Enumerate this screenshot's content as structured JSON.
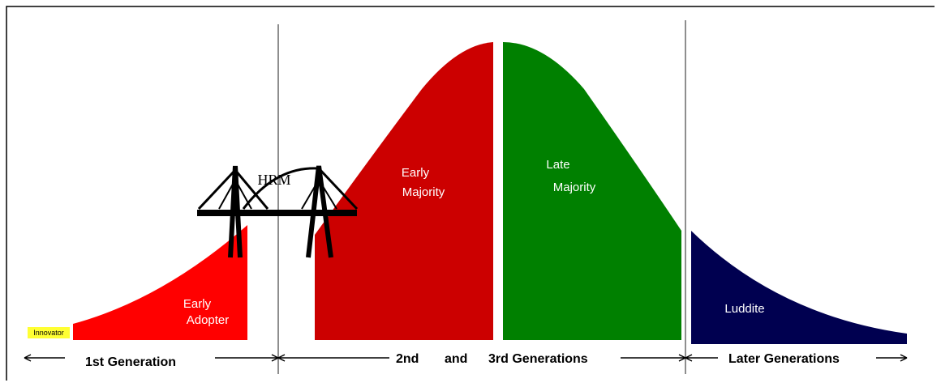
{
  "diagram": {
    "innovator": "Innovator",
    "early_adopter": [
      "Early",
      "Adopter"
    ],
    "bridge_label": "HRM",
    "early_majority": [
      "Early",
      "Majority"
    ],
    "late_majority": [
      "Late",
      "Majority"
    ],
    "luddite": "Luddite",
    "generations": [
      "1st Generation",
      "2nd",
      "and",
      "3rd Generations",
      "Later Generations"
    ]
  }
}
